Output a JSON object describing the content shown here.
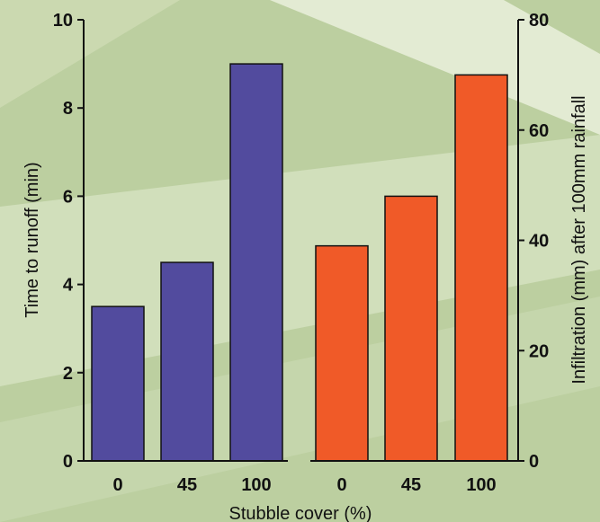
{
  "chart_data": {
    "type": "bar",
    "x_categories": [
      "0",
      "45",
      "100"
    ],
    "xlabel": "Stubble cover (%)",
    "left_axis": {
      "label": "Time to runoff (min)",
      "ylim": [
        0,
        10
      ],
      "ticks": [
        "0",
        "2",
        "4",
        "6",
        "8",
        "10"
      ]
    },
    "right_axis": {
      "label": "Infiltration (mm) after 100mm rainfall",
      "ylim": [
        0,
        80
      ],
      "ticks": [
        "0",
        "20",
        "40",
        "60",
        "80"
      ]
    },
    "series": [
      {
        "axis": "left",
        "categories": [
          "0",
          "45",
          "100"
        ],
        "values": [
          3.5,
          4.5,
          9.0
        ],
        "color": "#524b9e"
      },
      {
        "axis": "right",
        "categories": [
          "0",
          "45",
          "100"
        ],
        "values": [
          39,
          48,
          70
        ],
        "color": "#f05a28"
      }
    ],
    "grid": false,
    "legend": "none",
    "background": "light green with diagonal pale stripes"
  }
}
